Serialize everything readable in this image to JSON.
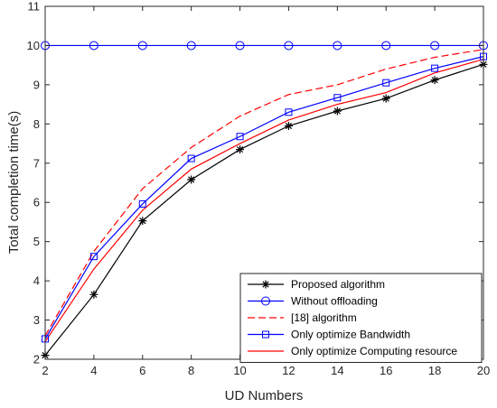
{
  "chart_data": {
    "type": "line",
    "xlabel": "UD Numbers",
    "ylabel": "Total completion time(s)",
    "xlim": [
      2,
      20
    ],
    "ylim": [
      2,
      11
    ],
    "x": [
      2,
      4,
      6,
      8,
      10,
      12,
      14,
      16,
      18,
      20
    ],
    "xticks": [
      2,
      4,
      6,
      8,
      10,
      12,
      14,
      16,
      18,
      20
    ],
    "yticks": [
      2,
      3,
      4,
      5,
      6,
      7,
      8,
      9,
      10,
      11
    ],
    "grid": false,
    "legend_position": "bottom-right",
    "series": [
      {
        "name": "Proposed algorithm",
        "values": [
          2.1,
          3.65,
          5.53,
          6.58,
          7.35,
          7.95,
          8.33,
          8.65,
          9.12,
          9.52
        ],
        "color": "#000000",
        "marker": "star",
        "dash": "solid"
      },
      {
        "name": "Without offloading",
        "values": [
          10,
          10,
          10,
          10,
          10,
          10,
          10,
          10,
          10,
          10
        ],
        "color": "#0000ff",
        "marker": "circle",
        "dash": "solid"
      },
      {
        "name": "[18] algorithm",
        "values": [
          2.6,
          4.75,
          6.35,
          7.4,
          8.2,
          8.75,
          9.0,
          9.4,
          9.7,
          9.9
        ],
        "color": "#ff0000",
        "marker": "none",
        "dash": "dashed"
      },
      {
        "name": "Only optimize Bandwidth",
        "values": [
          2.52,
          4.62,
          5.96,
          7.12,
          7.68,
          8.3,
          8.67,
          9.05,
          9.42,
          9.72
        ],
        "color": "#0000ff",
        "marker": "square",
        "dash": "solid"
      },
      {
        "name": "Only optimize Computing resource",
        "values": [
          2.45,
          4.3,
          5.8,
          6.85,
          7.5,
          8.1,
          8.5,
          8.8,
          9.3,
          9.65
        ],
        "color": "#ff0000",
        "marker": "none",
        "dash": "solid"
      }
    ]
  }
}
